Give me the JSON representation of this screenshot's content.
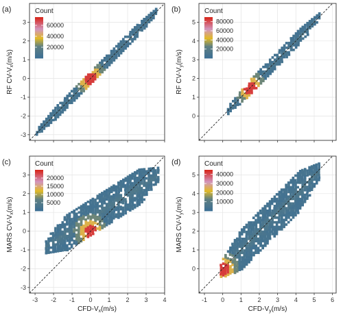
{
  "chart_data": [
    {
      "type": "hexbin",
      "panel_label": "(a)",
      "xlabel": "",
      "ylabel_prefix": "RF CV-V",
      "ylabel_sub": "x",
      "ylabel_suffix": "(m/s)",
      "xlim": [
        -3.3,
        4.0
      ],
      "ylim": [
        -3.3,
        4.0
      ],
      "xticks": [
        -3,
        -2,
        -1,
        0,
        1,
        2,
        3,
        4
      ],
      "yticks": [
        -3,
        -2,
        -1,
        0,
        1,
        2,
        3
      ],
      "show_x_ticklabels": false,
      "legend": {
        "title": "Count",
        "max": 75000,
        "ticks": [
          20000,
          40000,
          60000
        ],
        "labels": [
          "20000",
          "40000",
          "60000"
        ]
      },
      "reference_line": "y = x (dashed)",
      "point_cloud": {
        "x_range": [
          -2.9,
          3.6
        ],
        "center_y_range": [
          -2.9,
          3.6
        ],
        "spread": 0.12,
        "peak_x": 0,
        "peak_y": 0
      }
    },
    {
      "type": "hexbin",
      "panel_label": "(b)",
      "xlabel": "",
      "ylabel_prefix": "RF CV-V",
      "ylabel_sub": "y",
      "ylabel_suffix": "(m/s)",
      "xlim": [
        -1.3,
        6.2
      ],
      "ylim": [
        -1.3,
        6.0
      ],
      "xticks": [
        -1,
        0,
        1,
        2,
        3,
        4,
        5,
        6
      ],
      "yticks": [
        0,
        1,
        2,
        3,
        4,
        5
      ],
      "show_x_ticklabels": false,
      "legend": {
        "title": "Count",
        "max": 90000,
        "ticks": [
          20000,
          40000,
          60000,
          80000
        ],
        "labels": [
          "20000",
          "40000",
          "60000",
          "80000"
        ]
      },
      "reference_line": "y = x (dashed)",
      "point_cloud": {
        "x_range": [
          0.3,
          5.3
        ],
        "center_y_range": [
          0.3,
          5.3
        ],
        "spread": 0.15,
        "peak_x": 1.5,
        "peak_y": 1.5
      }
    },
    {
      "type": "hexbin",
      "panel_label": "(c)",
      "xlabel_prefix": "CFD-V",
      "xlabel_sub": "x",
      "xlabel_suffix": "(m/s)",
      "ylabel_prefix": "MARS CV-V",
      "ylabel_sub": "x",
      "ylabel_suffix": "(m/s)",
      "xlim": [
        -3.3,
        4.0
      ],
      "ylim": [
        -3.3,
        4.0
      ],
      "xticks": [
        -3,
        -2,
        -1,
        0,
        1,
        2,
        3,
        4
      ],
      "yticks": [
        -3,
        -2,
        -1,
        0,
        1,
        2,
        3
      ],
      "show_x_ticklabels": true,
      "legend": {
        "title": "Count",
        "max": 25000,
        "ticks": [
          5000,
          10000,
          15000,
          20000
        ],
        "labels": [
          "5000",
          "10000",
          "15000",
          "20000"
        ]
      },
      "reference_line": "y = x (dashed)",
      "point_cloud": {
        "x_range": [
          -2.4,
          3.7
        ],
        "center_y_range": [
          -0.8,
          3.0
        ],
        "spread": 0.4,
        "peak_x": 0,
        "peak_y": 0
      }
    },
    {
      "type": "hexbin",
      "panel_label": "(d)",
      "xlabel_prefix": "CFD-V",
      "xlabel_sub": "y",
      "xlabel_suffix": "(m/s)",
      "ylabel_prefix": "MARS CV-V",
      "ylabel_sub": "y",
      "ylabel_suffix": "(m/s)",
      "xlim": [
        -1.3,
        6.2
      ],
      "ylim": [
        -1.3,
        6.0
      ],
      "xticks": [
        -1,
        0,
        1,
        2,
        3,
        4,
        5,
        6
      ],
      "yticks": [
        0,
        1,
        2,
        3,
        4,
        5
      ],
      "show_x_ticklabels": true,
      "legend": {
        "title": "Count",
        "max": 45000,
        "ticks": [
          10000,
          20000,
          30000,
          40000
        ],
        "labels": [
          "10000",
          "20000",
          "30000",
          "40000"
        ]
      },
      "reference_line": "y = x (dashed)",
      "point_cloud": {
        "x_range": [
          -0.1,
          5.3
        ],
        "center_y_range": [
          -0.1,
          5.2
        ],
        "spread": 0.45,
        "peak_x": 0,
        "peak_y": 0
      }
    }
  ]
}
